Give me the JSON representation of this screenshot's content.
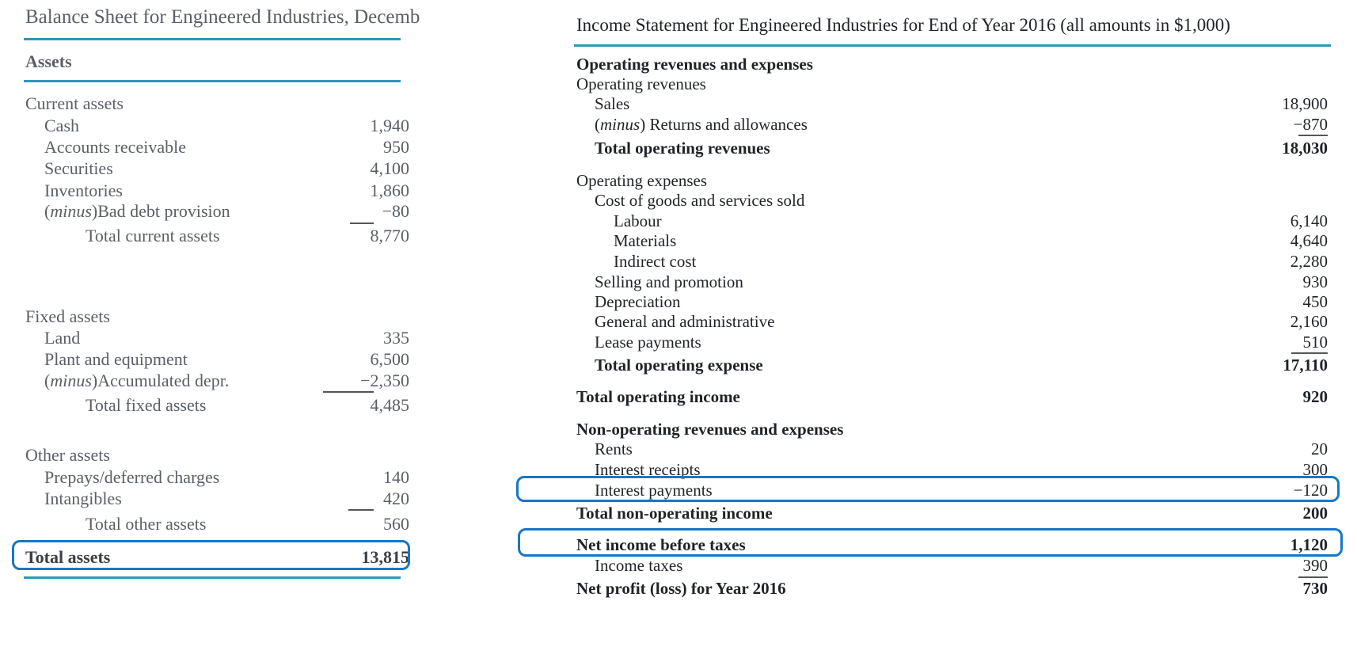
{
  "balance_sheet": {
    "title": "Balance Sheet for Engineered Industries, Decemb",
    "assets_header": "Assets",
    "current_assets": {
      "heading": "Current assets",
      "items": [
        {
          "label": "Cash",
          "value": "1,940"
        },
        {
          "label": "Accounts receivable",
          "value": "950"
        },
        {
          "label": "Securities",
          "value": "4,100"
        },
        {
          "label": "Inventories",
          "value": "1,860"
        },
        {
          "label_em": "minus",
          "label_rest": "Bad debt provision",
          "value": "−80"
        }
      ],
      "total_label": "Total current assets",
      "total_value": "8,770"
    },
    "fixed_assets": {
      "heading": "Fixed assets",
      "items": [
        {
          "label": "Land",
          "value": "335"
        },
        {
          "label": "Plant and equipment",
          "value": "6,500"
        },
        {
          "label_em": "minus",
          "label_rest": "Accumulated depr.",
          "value": "−2,350"
        }
      ],
      "total_label": "Total fixed assets",
      "total_value": "4,485"
    },
    "other_assets": {
      "heading": "Other assets",
      "items": [
        {
          "label": "Prepays/deferred charges",
          "value": "140"
        },
        {
          "label": "Intangibles",
          "value": "420"
        }
      ],
      "total_label": "Total other assets",
      "total_value": "560"
    },
    "total_assets_label": "Total assets",
    "total_assets_value": "13,815"
  },
  "income_statement": {
    "title": "Income Statement for Engineered Industries for End of Year 2016 (all amounts in $1,000)",
    "op_section": "Operating revenues and expenses",
    "op_revenues_heading": "Operating revenues",
    "sales_label": "Sales",
    "sales_value": "18,900",
    "returns_em": "minus",
    "returns_rest": "Returns and allowances",
    "returns_value": "−870",
    "total_op_rev_label": "Total operating revenues",
    "total_op_rev_value": "18,030",
    "op_expenses_heading": "Operating expenses",
    "cogs_heading": "Cost of goods and services sold",
    "labour_label": "Labour",
    "labour_value": "6,140",
    "materials_label": "Materials",
    "materials_value": "4,640",
    "indirect_label": "Indirect cost",
    "indirect_value": "2,280",
    "selling_label": "Selling and promotion",
    "selling_value": "930",
    "depreciation_label": "Depreciation",
    "depreciation_value": "450",
    "ga_label": "General and administrative",
    "ga_value": "2,160",
    "lease_label": "Lease payments",
    "lease_value": "510",
    "total_op_exp_label": "Total operating expense",
    "total_op_exp_value": "17,110",
    "total_op_income_label": "Total operating income",
    "total_op_income_value": "920",
    "nonop_section": "Non-operating revenues and expenses",
    "rents_label": "Rents",
    "rents_value": "20",
    "int_receipts_label": "Interest receipts",
    "int_receipts_value": "300",
    "int_payments_label": "Interest payments",
    "int_payments_value": "−120",
    "total_nonop_label": "Total non-operating income",
    "total_nonop_value": "200",
    "net_before_tax_label": "Net income before taxes",
    "net_before_tax_value": "1,120",
    "income_taxes_label": "Income taxes",
    "income_taxes_value": "390",
    "net_profit_label": "Net profit (loss) for Year 2016",
    "net_profit_value": "730"
  },
  "colors": {
    "rule": "#2e97b8",
    "highlight": "#1677c7"
  }
}
